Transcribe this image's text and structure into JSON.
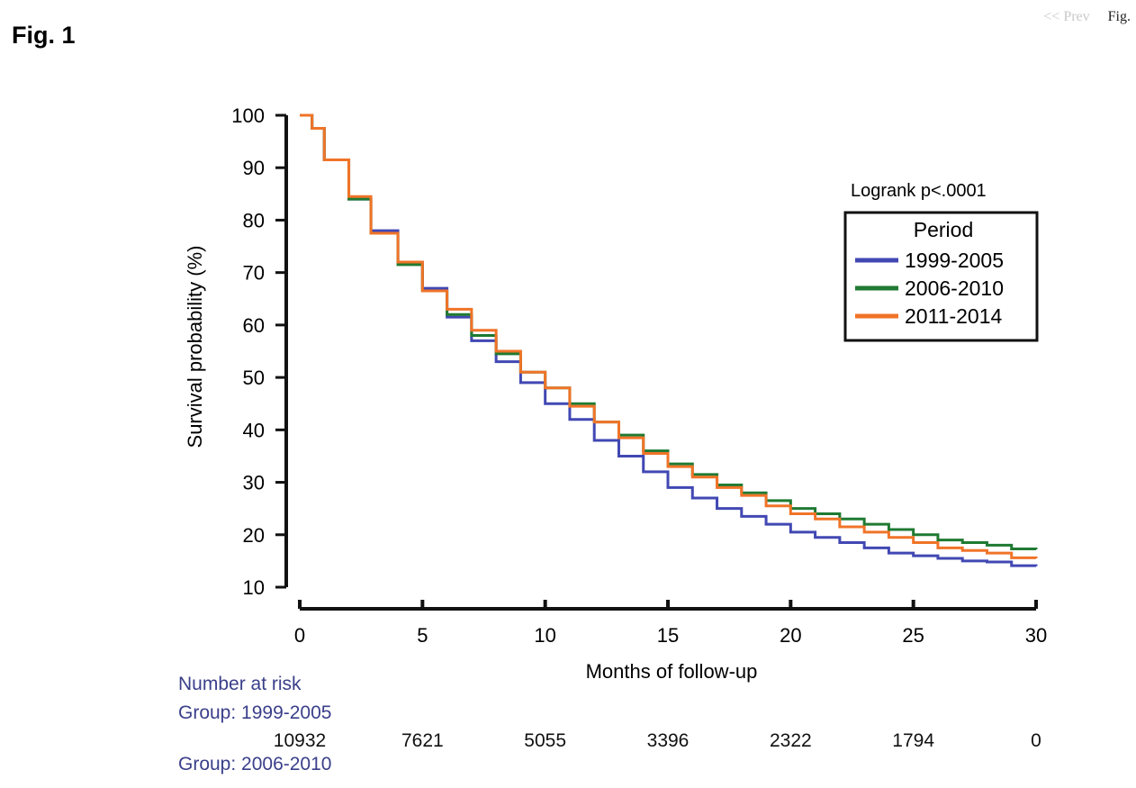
{
  "page": {
    "title": "Fig. 1",
    "nav_prev": "<< Prev",
    "nav_fig": "Fig."
  },
  "colors": {
    "series_1999_2005": "#4148b3",
    "series_2006_2010": "#1f7a32",
    "series_2011_2014": "#f07428",
    "risk_text": "#3a3f8a"
  },
  "chart_data": {
    "type": "line",
    "title": "",
    "xlabel": "Months of follow-up",
    "ylabel": "Survival probability (%)",
    "xlim": [
      0,
      30
    ],
    "ylim": [
      10,
      100
    ],
    "x_ticks": [
      0,
      5,
      10,
      15,
      20,
      25,
      30
    ],
    "y_ticks": [
      10,
      20,
      30,
      40,
      50,
      60,
      70,
      80,
      90,
      100
    ],
    "grid": false,
    "annotation": "Logrank  p<.0001",
    "legend_title": "Period",
    "legend_position": "top-right",
    "x": [
      0,
      0.5,
      1,
      2,
      2.9,
      4,
      5,
      6,
      7,
      8,
      9,
      10,
      11,
      12,
      13,
      14,
      15,
      16,
      17,
      18,
      19,
      20,
      21,
      22,
      23,
      24,
      25,
      26,
      27,
      28,
      29,
      30
    ],
    "series": [
      {
        "name": "1999-2005",
        "color": "#4148b3",
        "values": [
          100,
          97.5,
          91.5,
          84,
          78,
          72,
          67,
          61.5,
          57,
          53,
          49,
          45,
          42,
          38,
          35,
          32,
          29,
          27,
          25,
          23.5,
          22,
          20.5,
          19.5,
          18.5,
          17.5,
          16.5,
          16,
          15.5,
          15,
          14.8,
          14.1,
          14
        ]
      },
      {
        "name": "2006-2010",
        "color": "#1f7a32",
        "values": [
          100,
          97.5,
          91.5,
          84,
          77.5,
          71.5,
          66.5,
          62,
          58,
          54.5,
          51,
          48,
          45,
          41.5,
          39,
          36,
          33.5,
          31.5,
          29.5,
          28,
          26.5,
          25,
          24,
          23,
          22,
          21,
          20,
          19,
          18.5,
          18,
          17.3,
          17.2
        ]
      },
      {
        "name": "2011-2014",
        "color": "#f07428",
        "values": [
          100,
          97.5,
          91.5,
          84.5,
          77.5,
          72,
          66.5,
          63,
          59,
          55,
          51,
          48,
          44.5,
          41.5,
          38.5,
          35.5,
          33,
          31,
          29,
          27.5,
          25.5,
          24,
          23,
          21.5,
          20.5,
          19.5,
          18.5,
          17.5,
          17,
          16.5,
          15.6,
          15.5
        ]
      }
    ]
  },
  "risk_table": {
    "heading": "Number at risk",
    "group_label": "Group: 1999-2005",
    "times": [
      0,
      5,
      10,
      15,
      20,
      25,
      30
    ],
    "values": [
      "10932",
      "7621",
      "5055",
      "3396",
      "2322",
      "1794",
      "0"
    ],
    "next_group_label": "Group: 2006-2010"
  }
}
